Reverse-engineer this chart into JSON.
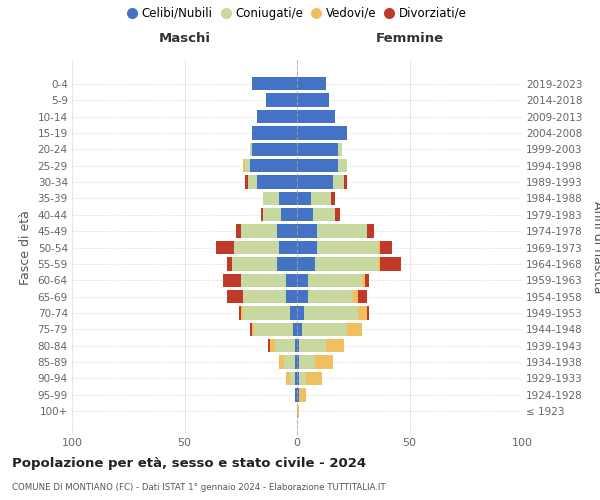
{
  "age_groups": [
    "100+",
    "95-99",
    "90-94",
    "85-89",
    "80-84",
    "75-79",
    "70-74",
    "65-69",
    "60-64",
    "55-59",
    "50-54",
    "45-49",
    "40-44",
    "35-39",
    "30-34",
    "25-29",
    "20-24",
    "15-19",
    "10-14",
    "5-9",
    "0-4"
  ],
  "birth_years": [
    "≤ 1923",
    "1924-1928",
    "1929-1933",
    "1934-1938",
    "1939-1943",
    "1944-1948",
    "1949-1953",
    "1954-1958",
    "1959-1963",
    "1964-1968",
    "1969-1973",
    "1974-1978",
    "1979-1983",
    "1984-1988",
    "1989-1993",
    "1994-1998",
    "1999-2003",
    "2004-2008",
    "2009-2013",
    "2014-2018",
    "2019-2023"
  ],
  "colors": {
    "celibi": "#4472c4",
    "coniugati": "#c8d9a0",
    "vedovi": "#f0c060",
    "divorziati": "#c0392b"
  },
  "maschi": {
    "celibi": [
      0,
      1,
      1,
      1,
      1,
      2,
      3,
      5,
      5,
      9,
      8,
      9,
      7,
      8,
      18,
      21,
      20,
      20,
      18,
      14,
      20
    ],
    "coniugati": [
      0,
      0,
      2,
      5,
      9,
      17,
      21,
      19,
      20,
      20,
      20,
      16,
      8,
      7,
      4,
      2,
      1,
      0,
      0,
      0,
      0
    ],
    "vedovi": [
      0,
      0,
      2,
      2,
      2,
      1,
      1,
      0,
      0,
      0,
      0,
      0,
      0,
      0,
      0,
      1,
      0,
      0,
      0,
      0,
      0
    ],
    "divorziati": [
      0,
      0,
      0,
      0,
      1,
      1,
      1,
      7,
      8,
      2,
      8,
      2,
      1,
      0,
      1,
      0,
      0,
      0,
      0,
      0,
      0
    ]
  },
  "femmine": {
    "celibi": [
      0,
      1,
      1,
      1,
      1,
      2,
      3,
      5,
      5,
      8,
      9,
      9,
      7,
      6,
      16,
      18,
      18,
      22,
      17,
      14,
      13
    ],
    "coniugati": [
      0,
      0,
      3,
      7,
      12,
      20,
      24,
      20,
      24,
      28,
      27,
      22,
      10,
      9,
      5,
      4,
      2,
      0,
      0,
      0,
      0
    ],
    "vedovi": [
      1,
      3,
      7,
      8,
      8,
      7,
      4,
      2,
      1,
      1,
      1,
      0,
      0,
      0,
      0,
      0,
      0,
      0,
      0,
      0,
      0
    ],
    "divorziati": [
      0,
      0,
      0,
      0,
      0,
      0,
      1,
      4,
      2,
      9,
      5,
      3,
      2,
      2,
      1,
      0,
      0,
      0,
      0,
      0,
      0
    ]
  },
  "xlim": 100,
  "title": "Popolazione per età, sesso e stato civile - 2024",
  "subtitle": "COMUNE DI MONTIANO (FC) - Dati ISTAT 1° gennaio 2024 - Elaborazione TUTTITALIA.IT",
  "ylabel_left": "Fasce di età",
  "ylabel_right": "Anni di nascita",
  "xlabel_left": "Maschi",
  "xlabel_right": "Femmine",
  "legend_labels": [
    "Celibi/Nubili",
    "Coniugati/e",
    "Vedovi/e",
    "Divorziati/e"
  ],
  "background_color": "#ffffff"
}
